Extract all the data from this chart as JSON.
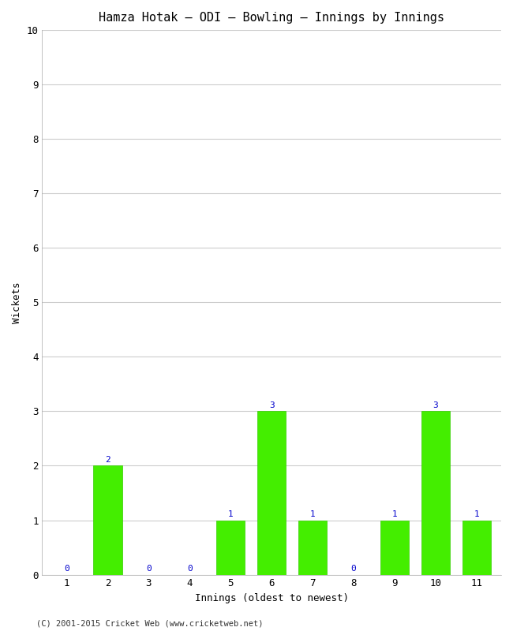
{
  "title": "Hamza Hotak – ODI – Bowling – Innings by Innings",
  "xlabel": "Innings (oldest to newest)",
  "ylabel": "Wickets",
  "categories": [
    1,
    2,
    3,
    4,
    5,
    6,
    7,
    8,
    9,
    10,
    11
  ],
  "values": [
    0,
    2,
    0,
    0,
    1,
    3,
    1,
    0,
    1,
    3,
    1
  ],
  "bar_color": "#44ee00",
  "bar_edge_color": "#33cc00",
  "label_color": "#0000cc",
  "ylim": [
    0,
    10
  ],
  "yticks": [
    0,
    1,
    2,
    3,
    4,
    5,
    6,
    7,
    8,
    9,
    10
  ],
  "background_color": "#ffffff",
  "plot_background_color": "#ffffff",
  "grid_color": "#cccccc",
  "title_fontsize": 11,
  "axis_label_fontsize": 9,
  "tick_fontsize": 9,
  "bar_label_fontsize": 8,
  "footer_text": "(C) 2001-2015 Cricket Web (www.cricketweb.net)",
  "footer_fontsize": 7.5
}
